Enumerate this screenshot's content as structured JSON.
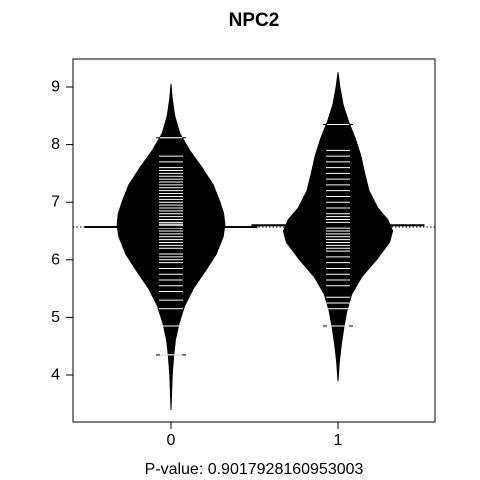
{
  "chart_data": {
    "type": "beanplot",
    "title": "NPC2",
    "xlabel": "P-value: 0.9017928160953003",
    "ylabel": "",
    "ylim": [
      3.3,
      9.5
    ],
    "yticks": [
      4,
      5,
      6,
      7,
      8,
      9
    ],
    "categories": [
      "0",
      "1"
    ],
    "overall_mean": 6.57,
    "groups": [
      {
        "category": "0",
        "mean": 6.57,
        "range": [
          3.4,
          9.05
        ],
        "density": [
          [
            3.4,
            0.0
          ],
          [
            3.7,
            0.01
          ],
          [
            4.0,
            0.02
          ],
          [
            4.3,
            0.04
          ],
          [
            4.6,
            0.07
          ],
          [
            4.9,
            0.13
          ],
          [
            5.2,
            0.22
          ],
          [
            5.5,
            0.36
          ],
          [
            5.8,
            0.55
          ],
          [
            6.1,
            0.73
          ],
          [
            6.4,
            0.84
          ],
          [
            6.6,
            0.87
          ],
          [
            6.8,
            0.85
          ],
          [
            7.0,
            0.79
          ],
          [
            7.3,
            0.68
          ],
          [
            7.6,
            0.5
          ],
          [
            7.9,
            0.3
          ],
          [
            8.2,
            0.14
          ],
          [
            8.5,
            0.06
          ],
          [
            8.8,
            0.02
          ],
          [
            9.05,
            0.0
          ]
        ],
        "values": [
          4.35,
          4.85,
          5.15,
          5.3,
          5.45,
          5.55,
          5.65,
          5.75,
          5.85,
          5.95,
          6.0,
          6.05,
          6.1,
          6.2,
          6.25,
          6.3,
          6.35,
          6.4,
          6.45,
          6.5,
          6.55,
          6.6,
          6.62,
          6.65,
          6.7,
          6.75,
          6.8,
          6.85,
          6.9,
          6.95,
          7.0,
          7.05,
          7.1,
          7.15,
          7.2,
          7.25,
          7.3,
          7.35,
          7.4,
          7.45,
          7.5,
          7.55,
          7.6,
          7.7,
          7.8,
          8.12
        ]
      },
      {
        "category": "1",
        "mean": 6.6,
        "range": [
          3.9,
          9.25
        ],
        "density": [
          [
            3.9,
            0.0
          ],
          [
            4.2,
            0.02
          ],
          [
            4.5,
            0.05
          ],
          [
            4.8,
            0.09
          ],
          [
            5.1,
            0.14
          ],
          [
            5.4,
            0.22
          ],
          [
            5.7,
            0.38
          ],
          [
            6.0,
            0.62
          ],
          [
            6.3,
            0.83
          ],
          [
            6.5,
            0.88
          ],
          [
            6.7,
            0.8
          ],
          [
            6.9,
            0.64
          ],
          [
            7.2,
            0.5
          ],
          [
            7.5,
            0.43
          ],
          [
            7.8,
            0.37
          ],
          [
            8.1,
            0.28
          ],
          [
            8.4,
            0.17
          ],
          [
            8.7,
            0.08
          ],
          [
            9.0,
            0.03
          ],
          [
            9.25,
            0.0
          ]
        ],
        "values": [
          4.85,
          5.15,
          5.25,
          5.35,
          5.55,
          5.65,
          5.75,
          5.85,
          5.95,
          6.05,
          6.15,
          6.2,
          6.25,
          6.3,
          6.35,
          6.4,
          6.45,
          6.5,
          6.55,
          6.6,
          6.65,
          6.7,
          6.75,
          6.8,
          6.9,
          7.0,
          7.1,
          7.2,
          7.3,
          7.4,
          7.5,
          7.6,
          7.7,
          7.8,
          7.9,
          8.35
        ]
      }
    ]
  }
}
